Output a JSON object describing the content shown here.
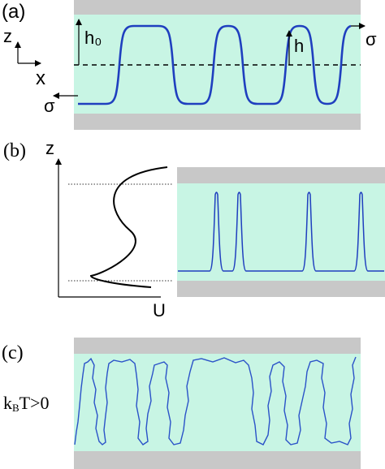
{
  "panel_a": {
    "label": "(a)",
    "axis_z": "z",
    "axis_x": "x",
    "h0": "h₀",
    "h": "h",
    "sigma_left": "σ",
    "sigma_right": "σ"
  },
  "panel_b": {
    "label": "(b)",
    "axis_z": "z",
    "axis_u": "U"
  },
  "panel_c": {
    "label": "(c)",
    "condition": "kBT>0",
    "condition_k": "k",
    "condition_sub": "B",
    "condition_rest": "T>0"
  },
  "colors": {
    "fluid": "#c8f5e4",
    "wall": "#c8c8c8",
    "interface": "#1f3fbf"
  }
}
